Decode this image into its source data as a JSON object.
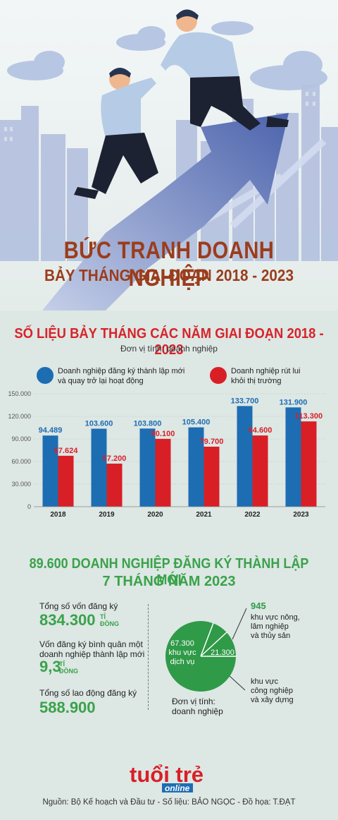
{
  "header": {
    "title": "BỨC TRANH DOANH NGHIỆP",
    "subtitle": "BẢY THÁNG GIAI ĐOẠN 2018 - 2023"
  },
  "chart_section": {
    "title": "SỐ LIỆU  BẢY THÁNG CÁC NĂM GIAI ĐOẠN 2018 - 2023",
    "unit": "Đơn vị tính: doanh nghiệp",
    "legend": {
      "new": "Doanh nghiệp đăng ký thành lập mới\nvà quay trở lại hoạt động",
      "exit": "Doanh nghiệp rút lui\nkhỏi thị trường"
    },
    "colors": {
      "new": "#1d6db3",
      "exit": "#d91f26"
    }
  },
  "chart_data": {
    "type": "bar",
    "categories": [
      "2018",
      "2019",
      "2020",
      "2021",
      "2022",
      "2023"
    ],
    "series": [
      {
        "name": "Doanh nghiệp đăng ký thành lập mới và quay trở lại hoạt động",
        "values": [
          94489,
          103600,
          103800,
          105400,
          133700,
          131900
        ],
        "labels": [
          "94.489",
          "103.600",
          "103.800",
          "105.400",
          "133.700",
          "131.900"
        ]
      },
      {
        "name": "Doanh nghiệp rút lui khỏi thị trường",
        "values": [
          67624,
          57200,
          90100,
          79700,
          94600,
          113300
        ],
        "labels": [
          "67.624",
          "57.200",
          "90.100",
          "79.700",
          "94.600",
          "113.300"
        ]
      }
    ],
    "yticks": [
      "0",
      "30.000",
      "60.000",
      "90.000",
      "120.000",
      "150.000"
    ],
    "ylim": [
      0,
      150000
    ]
  },
  "section2": {
    "title_line1": "89.600 DOANH NGHIỆP ĐĂNG KÝ THÀNH LẬP MỚI",
    "title_line2": "7 THÁNG NĂM 2023",
    "capital_label": "Tổng số vốn đăng ký",
    "capital_value": "834.300",
    "capital_unit1": "TỈ",
    "capital_unit2": "ĐỒNG",
    "avg_label1": "Vốn đăng ký bình quân một",
    "avg_label2": "doanh nghiệp thành lập mới",
    "avg_value": "9,3",
    "avg_unit1": "TỈ",
    "avg_unit2": "ĐỒNG",
    "labor_label": "Tổng số lao động đăng ký",
    "labor_value": "588.900",
    "pie": {
      "services_value": "67.300",
      "services_label1": "khu vực",
      "services_label2": "dịch vụ",
      "industry_value": "21.300",
      "agri_value": "945",
      "agri_label1": "khu vực nông,",
      "agri_label2": "lâm nghiệp",
      "agri_label3": "và thủy sản",
      "industry_label1": "khu vực",
      "industry_label2": "công nghiệp",
      "industry_label3": "và xây dựng",
      "unit1": "Đơn vị tính:",
      "unit2": "doanh nghiệp",
      "values": [
        67300,
        21300,
        945
      ],
      "color": "#2f9a47"
    }
  },
  "logo": {
    "brand_top": "tuổi trẻ",
    "brand_bottom": "online"
  },
  "source": "Nguồn: Bộ Kế hoạch và Đầu tư - Số liệu: BẢO NGỌC - Đồ họa: T.ĐẠT"
}
